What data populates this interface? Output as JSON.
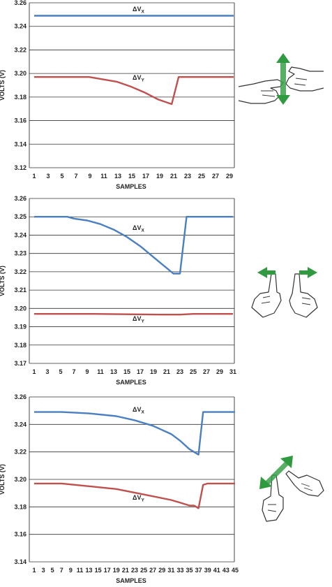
{
  "chart_data": [
    {
      "type": "line",
      "xlabel": "SAMPLES",
      "ylabel": "VOLTS (V)",
      "ylim": [
        3.12,
        3.26
      ],
      "yticks": [
        "3.26",
        "3.24",
        "3.22",
        "3.20",
        "3.18",
        "3.16",
        "3.14",
        "3.12"
      ],
      "xlim": [
        1,
        30
      ],
      "xticks": [
        "1",
        "3",
        "5",
        "7",
        "9",
        "11",
        "13",
        "15",
        "17",
        "19",
        "21",
        "23",
        "25",
        "27",
        "29"
      ],
      "grid": "horizontal",
      "gesture": "pan-vertical",
      "series": [
        {
          "name": "ΔVX",
          "label_main": "ΔV",
          "label_sub": "X",
          "color": "#4a7fc1",
          "x": [
            1,
            9,
            15,
            22,
            30
          ],
          "y": [
            3.249,
            3.249,
            3.249,
            3.249,
            3.249
          ]
        },
        {
          "name": "ΔVY",
          "label_main": "ΔV",
          "label_sub": "Y",
          "color": "#c0504d",
          "x": [
            1,
            9,
            11,
            13,
            15,
            17,
            19,
            20,
            21,
            22,
            30
          ],
          "y": [
            3.197,
            3.197,
            3.195,
            3.193,
            3.189,
            3.184,
            3.178,
            3.176,
            3.174,
            3.197,
            3.197
          ]
        }
      ]
    },
    {
      "type": "line",
      "xlabel": "SAMPLES",
      "ylabel": "VOLTS (V)",
      "ylim": [
        3.17,
        3.26
      ],
      "yticks": [
        "3.26",
        "3.25",
        "3.24",
        "3.23",
        "3.22",
        "3.21",
        "3.20",
        "3.19",
        "3.18",
        "3.17"
      ],
      "xlim": [
        1,
        31
      ],
      "xticks": [
        "1",
        "3",
        "5",
        "7",
        "9",
        "11",
        "13",
        "15",
        "17",
        "19",
        "21",
        "23",
        "25",
        "27",
        "29",
        "31"
      ],
      "grid": "horizontal",
      "gesture": "pan-horizontal",
      "series": [
        {
          "name": "ΔVX",
          "label_main": "ΔV",
          "label_sub": "X",
          "color": "#4a7fc1",
          "x": [
            1,
            6,
            7,
            9,
            11,
            13,
            15,
            17,
            19,
            20,
            21,
            22,
            23,
            24,
            31
          ],
          "y": [
            3.25,
            3.25,
            3.249,
            3.248,
            3.246,
            3.243,
            3.239,
            3.234,
            3.228,
            3.225,
            3.222,
            3.219,
            3.219,
            3.25,
            3.25
          ]
        },
        {
          "name": "ΔVY",
          "label_main": "ΔV",
          "label_sub": "Y",
          "color": "#c0504d",
          "x": [
            1,
            10,
            15,
            20,
            23,
            25,
            31
          ],
          "y": [
            3.197,
            3.197,
            3.1968,
            3.1966,
            3.1966,
            3.197,
            3.197
          ]
        }
      ]
    },
    {
      "type": "line",
      "xlabel": "SAMPLES",
      "ylabel": "VOLTS (V)",
      "ylim": [
        3.14,
        3.26
      ],
      "yticks": [
        "3.26",
        "3.24",
        "3.22",
        "3.20",
        "3.18",
        "3.16",
        "3.14"
      ],
      "xlim": [
        1,
        45
      ],
      "xticks": [
        "1",
        "3",
        "5",
        "7",
        "9",
        "11",
        "13",
        "15",
        "17",
        "19",
        "21",
        "23",
        "25",
        "27",
        "29",
        "31",
        "33",
        "35",
        "37",
        "39",
        "41",
        "43",
        "45"
      ],
      "grid": "horizontal",
      "gesture": "pan-diagonal",
      "series": [
        {
          "name": "ΔVX",
          "label_main": "ΔV",
          "label_sub": "X",
          "color": "#4a7fc1",
          "x": [
            1,
            7,
            13,
            19,
            23,
            27,
            29,
            31,
            33,
            35,
            36,
            37,
            38,
            39,
            45
          ],
          "y": [
            3.249,
            3.249,
            3.248,
            3.246,
            3.243,
            3.239,
            3.236,
            3.233,
            3.228,
            3.222,
            3.22,
            3.218,
            3.249,
            3.249,
            3.249
          ]
        },
        {
          "name": "ΔVY",
          "label_main": "ΔV",
          "label_sub": "Y",
          "color": "#c0504d",
          "x": [
            1,
            7,
            13,
            19,
            25,
            31,
            33,
            35,
            36,
            37,
            38,
            39,
            45
          ],
          "y": [
            3.197,
            3.197,
            3.195,
            3.193,
            3.189,
            3.185,
            3.183,
            3.181,
            3.181,
            3.179,
            3.196,
            3.197,
            3.197
          ]
        }
      ]
    }
  ]
}
